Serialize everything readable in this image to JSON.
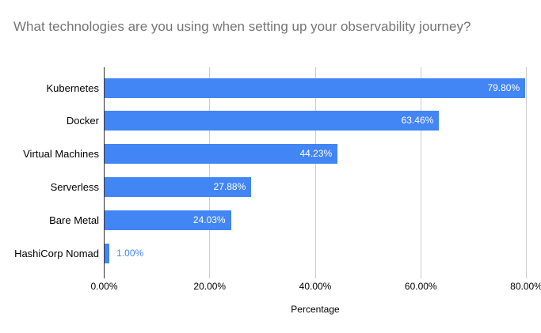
{
  "chart_data": {
    "type": "bar",
    "orientation": "horizontal",
    "title": "What technologies are you using when setting up your observability journey?",
    "categories": [
      "Kubernetes",
      "Docker",
      "Virtual Machines",
      "Serverless",
      "Bare Metal",
      "HashiCorp Nomad"
    ],
    "values": [
      79.8,
      63.46,
      44.23,
      27.88,
      24.03,
      1.0
    ],
    "value_labels": [
      "79.80%",
      "63.46%",
      "44.23%",
      "27.88%",
      "24.03%",
      "1.00%"
    ],
    "xlabel": "Percentage",
    "x_ticks": [
      "0.00%",
      "20.00%",
      "40.00%",
      "60.00%",
      "80.00%"
    ],
    "x_tick_values": [
      0,
      20,
      40,
      60,
      80
    ],
    "xlim": [
      0,
      80
    ],
    "grid": true,
    "legend": "none",
    "colors": {
      "bar": "#4285f4",
      "title_text": "#757575",
      "gridline": "#cccccc",
      "axis_line": "#333333",
      "value_label_inside": "#ffffff",
      "value_label_outside": "#4285f4"
    }
  }
}
